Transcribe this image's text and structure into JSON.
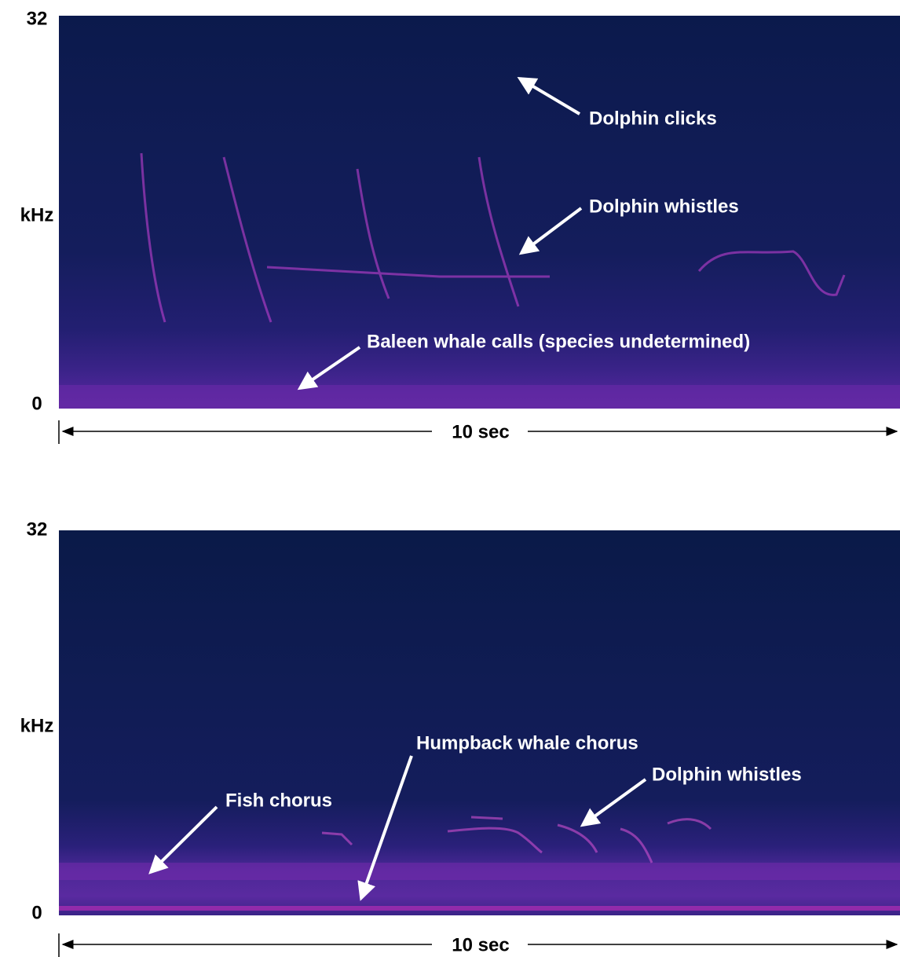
{
  "panels": [
    {
      "y_top": "32",
      "y_unit": "kHz",
      "y_bottom": "0",
      "x_span": "10 sec",
      "annotations": [
        "Dolphin clicks",
        "Dolphin whistles",
        "Baleen whale calls (species undetermined)"
      ]
    },
    {
      "y_top": "32",
      "y_unit": "kHz",
      "y_bottom": "0",
      "x_span": "10 sec",
      "annotations": [
        "Humpback whale chorus",
        "Dolphin whistles",
        "Fish chorus"
      ]
    }
  ]
}
